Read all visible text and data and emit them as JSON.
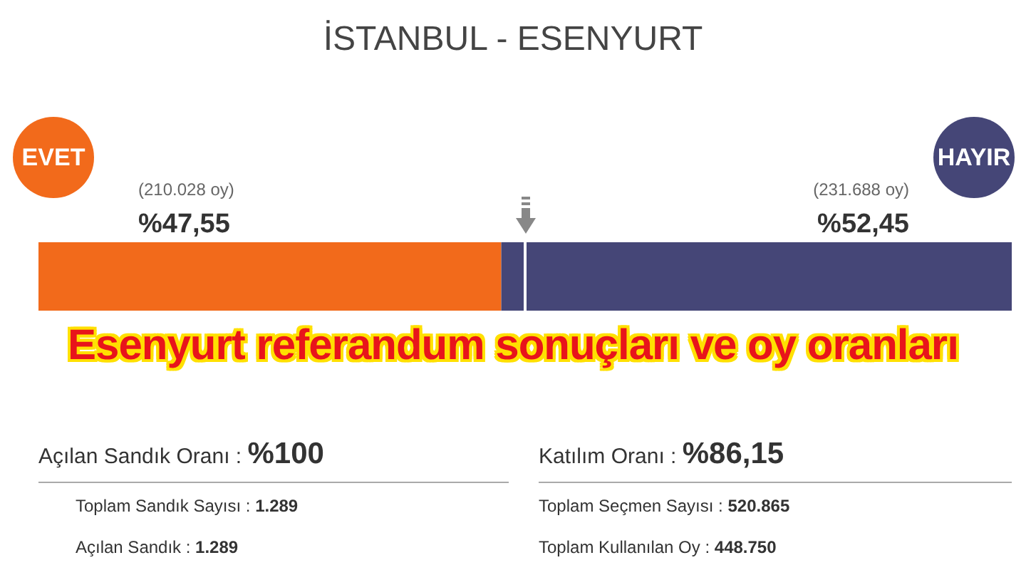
{
  "chart_data": {
    "type": "bar",
    "orientation": "horizontal",
    "stacked": true,
    "title": "İSTANBUL - ESENYURT",
    "subtitle": "Esenyurt referandum sonuçları ve oy oranları",
    "categories": [
      null
    ],
    "series": [
      {
        "name": "EVET",
        "color": "#f26a1b",
        "values": [
          47.55
        ],
        "value_labels": [
          "%47,55"
        ]
      },
      {
        "name": "HAYIR",
        "color": "#454677",
        "values": [
          52.45
        ],
        "value_labels": [
          "%52,45"
        ]
      }
    ],
    "xlim": [
      0,
      100
    ],
    "tick_labels": false,
    "grid": false,
    "legend": "top",
    "ref_lines": [
      {
        "axis": "x",
        "value": 50,
        "color": "#ffffff"
      }
    ],
    "annotations": [
      "(210.028 oy)",
      "(231.688 oy)",
      "Açılan Sandık Oranı : %100",
      "Toplam Sandık Sayısı : 1.289",
      "Açılan Sandık : 1.289",
      "Katılım Oranı : %86,15",
      "Toplam Seçmen Sayısı : 520.865",
      "Toplam Kullanılan Oy : 448.750"
    ]
  }
}
